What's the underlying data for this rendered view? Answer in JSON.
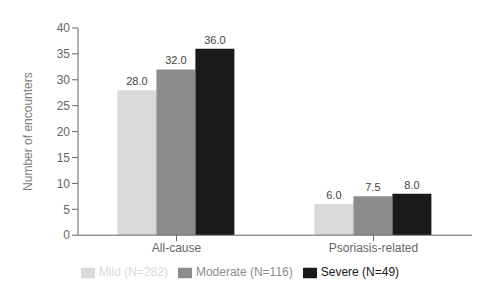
{
  "chart_data": {
    "type": "bar",
    "ylabel": "Number of encounters",
    "categories": [
      "All-cause",
      "Psoriasis-related"
    ],
    "series": [
      {
        "name": "Mild (N=282)",
        "color": "#d9d9d9",
        "values": [
          28.0,
          6.0
        ],
        "value_labels": [
          "28.0",
          "6.0"
        ]
      },
      {
        "name": "Moderate (N=116)",
        "color": "#8c8c8c",
        "values": [
          32.0,
          7.5
        ],
        "value_labels": [
          "32.0",
          "7.5"
        ]
      },
      {
        "name": "Severe (N=49)",
        "color": "#1a1a1a",
        "values": [
          36.0,
          8.0
        ],
        "value_labels": [
          "36.0",
          "8.0"
        ]
      }
    ],
    "ylim": [
      0,
      40
    ],
    "yticks": [
      0,
      5,
      10,
      15,
      20,
      25,
      30,
      35,
      40
    ],
    "grid": false,
    "legend": "bottom",
    "data_labels": true
  }
}
